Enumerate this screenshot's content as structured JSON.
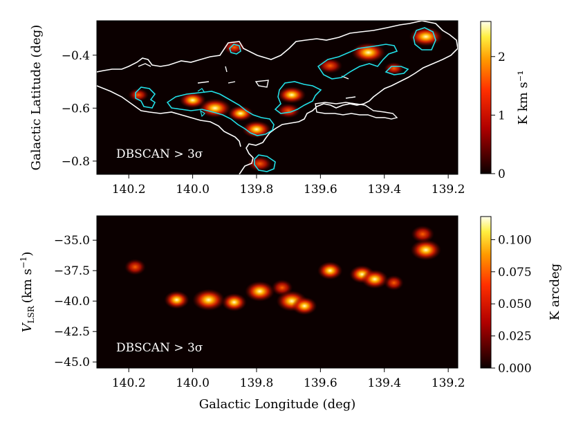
{
  "chart_data": [
    {
      "type": "heatmap",
      "panel": "top",
      "title": "",
      "xlabel": "",
      "ylabel": "Galactic Latitude (deg)",
      "xlim": [
        140.3,
        139.17
      ],
      "ylim": [
        -0.85,
        -0.27
      ],
      "xticks": [
        140.2,
        140.0,
        139.8,
        139.6,
        139.4,
        139.2
      ],
      "xtick_labels": [
        "140.2",
        "140.0",
        "139.8",
        "139.6",
        "139.4",
        "139.2"
      ],
      "yticks": [
        -0.4,
        -0.6,
        -0.8
      ],
      "ytick_labels": [
        "−0.4",
        "−0.6",
        "−0.8"
      ],
      "annotation": "DBSCAN > 3σ",
      "colorbar": {
        "label": "K km s⁻¹",
        "range": [
          0,
          2.6
        ],
        "ticks": [
          0,
          1,
          2
        ],
        "tick_labels": [
          "0",
          "1",
          "2"
        ]
      },
      "contours": [
        {
          "name": "white outer contour",
          "color": "#ffffff"
        },
        {
          "name": "DBSCAN > 3σ cyan contour",
          "color": "#22e0e8"
        }
      ],
      "emission_peaks": [
        {
          "l": 140.17,
          "b": -0.55,
          "intensity": 0.8
        },
        {
          "l": 140.0,
          "b": -0.57,
          "intensity": 1.5
        },
        {
          "l": 139.93,
          "b": -0.6,
          "intensity": 2.2
        },
        {
          "l": 139.85,
          "b": -0.62,
          "intensity": 1.4
        },
        {
          "l": 139.8,
          "b": -0.68,
          "intensity": 1.8
        },
        {
          "l": 139.79,
          "b": -0.81,
          "intensity": 1.3
        },
        {
          "l": 139.87,
          "b": -0.37,
          "intensity": 1.0
        },
        {
          "l": 139.69,
          "b": -0.55,
          "intensity": 1.7
        },
        {
          "l": 139.7,
          "b": -0.61,
          "intensity": 1.2
        },
        {
          "l": 139.57,
          "b": -0.44,
          "intensity": 1.3
        },
        {
          "l": 139.45,
          "b": -0.39,
          "intensity": 2.4
        },
        {
          "l": 139.37,
          "b": -0.45,
          "intensity": 0.7
        },
        {
          "l": 139.27,
          "b": -0.33,
          "intensity": 2.3
        }
      ]
    },
    {
      "type": "heatmap",
      "panel": "bottom",
      "title": "",
      "xlabel": "Galactic Longitude (deg)",
      "ylabel": "V_LSR (km s⁻¹)",
      "ylabel_parts": {
        "symbol": "V",
        "subscript": "LSR",
        "unit": "(km s",
        "exponent": "−1",
        "close": ")"
      },
      "xlim": [
        140.3,
        139.17
      ],
      "ylim": [
        -45.5,
        -33.0
      ],
      "xticks": [
        140.2,
        140.0,
        139.8,
        139.6,
        139.4,
        139.2
      ],
      "xtick_labels": [
        "140.2",
        "140.0",
        "139.8",
        "139.6",
        "139.4",
        "139.2"
      ],
      "yticks": [
        -35.0,
        -37.5,
        -40.0,
        -42.5,
        -45.0
      ],
      "ytick_labels": [
        "−35.0",
        "−37.5",
        "−40.0",
        "−42.5",
        "−45.0"
      ],
      "annotation": "DBSCAN > 3σ",
      "colorbar": {
        "label": "K arcdeg",
        "range": [
          0,
          0.118
        ],
        "ticks": [
          0.0,
          0.025,
          0.05,
          0.075,
          0.1
        ],
        "tick_labels": [
          "0.000",
          "0.025",
          "0.050",
          "0.075",
          "0.100"
        ]
      },
      "emission_peaks": [
        {
          "l": 140.18,
          "v": -37.2,
          "intensity": 0.04
        },
        {
          "l": 140.05,
          "v": -39.9,
          "intensity": 0.06
        },
        {
          "l": 139.95,
          "v": -39.9,
          "intensity": 0.1
        },
        {
          "l": 139.87,
          "v": -40.1,
          "intensity": 0.06
        },
        {
          "l": 139.79,
          "v": -39.2,
          "intensity": 0.085
        },
        {
          "l": 139.72,
          "v": -38.9,
          "intensity": 0.04
        },
        {
          "l": 139.69,
          "v": -40.0,
          "intensity": 0.09
        },
        {
          "l": 139.65,
          "v": -40.4,
          "intensity": 0.06
        },
        {
          "l": 139.57,
          "v": -37.5,
          "intensity": 0.06
        },
        {
          "l": 139.47,
          "v": -37.8,
          "intensity": 0.06
        },
        {
          "l": 139.43,
          "v": -38.2,
          "intensity": 0.07
        },
        {
          "l": 139.37,
          "v": -38.5,
          "intensity": 0.03
        },
        {
          "l": 139.27,
          "v": -35.8,
          "intensity": 0.09
        },
        {
          "l": 139.28,
          "v": -34.5,
          "intensity": 0.05
        }
      ]
    }
  ]
}
